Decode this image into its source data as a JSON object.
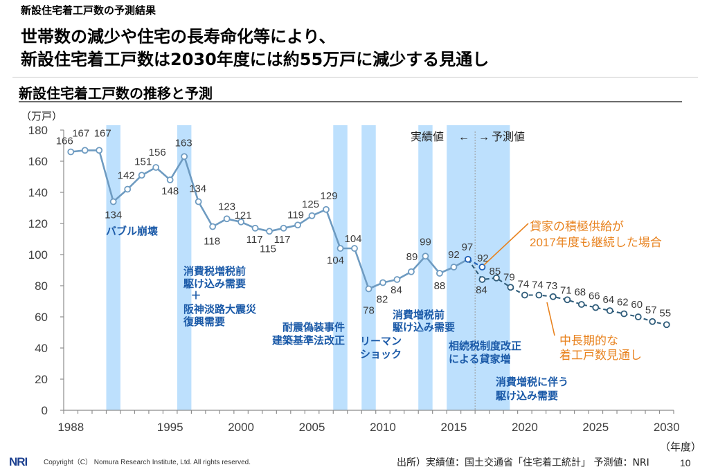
{
  "slide": {
    "section_label": "新設住宅着工戸数の予測結果",
    "headline": [
      "世帯数の減少や住宅の長寿命化等により、",
      "新設住宅着工戸数は2030年度には約55万戸に減少する見通し"
    ],
    "chart_heading": "新設住宅着工戸数の推移と予測",
    "page_number": "10"
  },
  "footer": {
    "logo": "NRI",
    "copyright": "Copyright（C） Nomura Research Institute, Ltd. All rights reserved.",
    "source": "出所）実績値：国土交通省「住宅着工統計」 予測値：NRI"
  },
  "chart_data": {
    "type": "line",
    "title": "新設住宅着工戸数の推移と予測",
    "ylabel": "（万戸）",
    "xlabel": "（年度）",
    "ylim": [
      0,
      180
    ],
    "yticks": [
      0,
      20,
      40,
      60,
      80,
      100,
      120,
      140,
      160,
      180
    ],
    "xlim": [
      1988,
      2030
    ],
    "xticks": [
      1988,
      1995,
      2000,
      2005,
      2010,
      2015,
      2020,
      2025,
      2030
    ],
    "grid": false,
    "legend": "none",
    "colors": {
      "shade": "#bde0fd",
      "event_text": "#1b5aa8",
      "callout": "#e8821e",
      "axis": "#8c8c8c"
    },
    "series": [
      {
        "name": "実績値",
        "style": "solid",
        "color": "#6e9bc1",
        "x": [
          1988,
          1989,
          1990,
          1991,
          1992,
          1993,
          1994,
          1995,
          1996,
          1997,
          1998,
          1999,
          2000,
          2001,
          2002,
          2003,
          2004,
          2005,
          2006,
          2007,
          2008,
          2009,
          2010,
          2011,
          2012,
          2013,
          2014,
          2015,
          2016
        ],
        "values": [
          166,
          167,
          167,
          134,
          142,
          151,
          156,
          148,
          163,
          134,
          118,
          123,
          121,
          117,
          115,
          117,
          119,
          125,
          129,
          104,
          104,
          78,
          82,
          84,
          89,
          99,
          88,
          92,
          97
        ]
      },
      {
        "name": "中長期的な着工戸数見通し",
        "style": "dashed",
        "color": "#2f5c7a",
        "x": [
          2016,
          2017,
          2018,
          2019,
          2020,
          2021,
          2022,
          2023,
          2024,
          2025,
          2026,
          2027,
          2028,
          2029,
          2030
        ],
        "values": [
          97,
          84,
          85,
          79,
          74,
          74,
          73,
          71,
          68,
          66,
          64,
          62,
          60,
          57,
          55
        ]
      },
      {
        "name": "貸家の積極供給が2017年度も継続した場合",
        "style": "dashed",
        "color": "#1f5fb5",
        "x": [
          2016,
          2017
        ],
        "values": [
          97,
          92
        ]
      }
    ],
    "divider": {
      "between": [
        2016,
        2017
      ],
      "left_label": "実績値",
      "left_arrow": "←",
      "right_arrow": "→",
      "right_label": "予測値"
    },
    "shaded_periods": [
      {
        "start": 1991,
        "end": 1992,
        "annotations": [
          {
            "lines": [
              "バブル崩壊"
            ]
          }
        ]
      },
      {
        "start": 1996,
        "end": 1997,
        "annotations": [
          {
            "lines": [
              "消費税増税前",
              "駆け込み需要",
              "＋",
              "阪神淡路大震災",
              "復興需要"
            ]
          }
        ]
      },
      {
        "start": 2007,
        "end": 2008,
        "annotations": [
          {
            "lines": [
              "耐震偽装事件",
              "建築基準法改正"
            ]
          }
        ]
      },
      {
        "start": 2009,
        "end": 2010,
        "annotations": [
          {
            "lines": [
              "リーマン",
              "ショック"
            ]
          }
        ]
      },
      {
        "start": 2013,
        "end": 2014,
        "annotations": [
          {
            "lines": [
              "消費増税前",
              "駆け込み需要"
            ]
          }
        ]
      },
      {
        "start": 2015,
        "end": 2019.45,
        "annotations": [
          {
            "lines": [
              "相続税制度改正",
              "による貸家増"
            ]
          },
          {
            "lines": [
              "消費増税に伴う",
              "駆け込み需要"
            ]
          }
        ]
      }
    ],
    "callouts": [
      {
        "target_series": "貸家の積極供給が2017年度も継続した場合",
        "lines": [
          "貸家の積極供給が",
          "2017年度も継続した場合"
        ]
      },
      {
        "target_series": "中長期的な着工戸数見通し",
        "lines": [
          "中長期的な",
          "着工戸数見通し"
        ]
      }
    ]
  }
}
